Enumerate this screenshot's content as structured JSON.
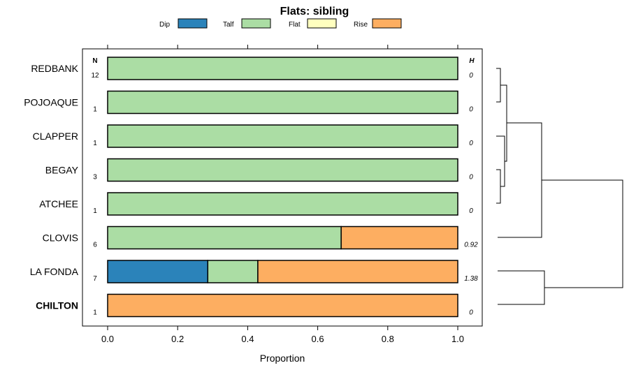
{
  "chart_data": {
    "type": "bar",
    "orientation": "horizontal",
    "stacked": true,
    "title": "Flats: sibling",
    "xlabel": "Proportion",
    "xlim": [
      0,
      1
    ],
    "xticks": [
      "0.0",
      "0.2",
      "0.4",
      "0.6",
      "0.8",
      "1.0"
    ],
    "xtick_values": [
      0,
      0.2,
      0.4,
      0.6,
      0.8,
      1.0
    ],
    "n_header": "N",
    "h_header": "H",
    "legend": [
      {
        "name": "Dip",
        "color": "#2b83ba"
      },
      {
        "name": "Talf",
        "color": "#abdda4"
      },
      {
        "name": "Flat",
        "color": "#ffffbf"
      },
      {
        "name": "Rise",
        "color": "#fdae61"
      }
    ],
    "rows": [
      {
        "label": "REDBANK",
        "n": "12",
        "h": "0",
        "bold": false,
        "values": [
          0,
          1,
          0,
          0
        ]
      },
      {
        "label": "POJOAQUE",
        "n": "1",
        "h": "0",
        "bold": false,
        "values": [
          0,
          1,
          0,
          0
        ]
      },
      {
        "label": "CLAPPER",
        "n": "1",
        "h": "0",
        "bold": false,
        "values": [
          0,
          1,
          0,
          0
        ]
      },
      {
        "label": "BEGAY",
        "n": "3",
        "h": "0",
        "bold": false,
        "values": [
          0,
          1,
          0,
          0
        ]
      },
      {
        "label": "ATCHEE",
        "n": "1",
        "h": "0",
        "bold": false,
        "values": [
          0,
          1,
          0,
          0
        ]
      },
      {
        "label": "CLOVIS",
        "n": "6",
        "h": "0.92",
        "bold": false,
        "values": [
          0,
          0.667,
          0,
          0.333
        ]
      },
      {
        "label": "LA FONDA",
        "n": "7",
        "h": "1.38",
        "bold": false,
        "values": [
          0.286,
          0.143,
          0,
          0.571
        ]
      },
      {
        "label": "CHILTON",
        "n": "1",
        "h": "0",
        "bold": true,
        "values": [
          0,
          0,
          0,
          1
        ]
      }
    ]
  }
}
